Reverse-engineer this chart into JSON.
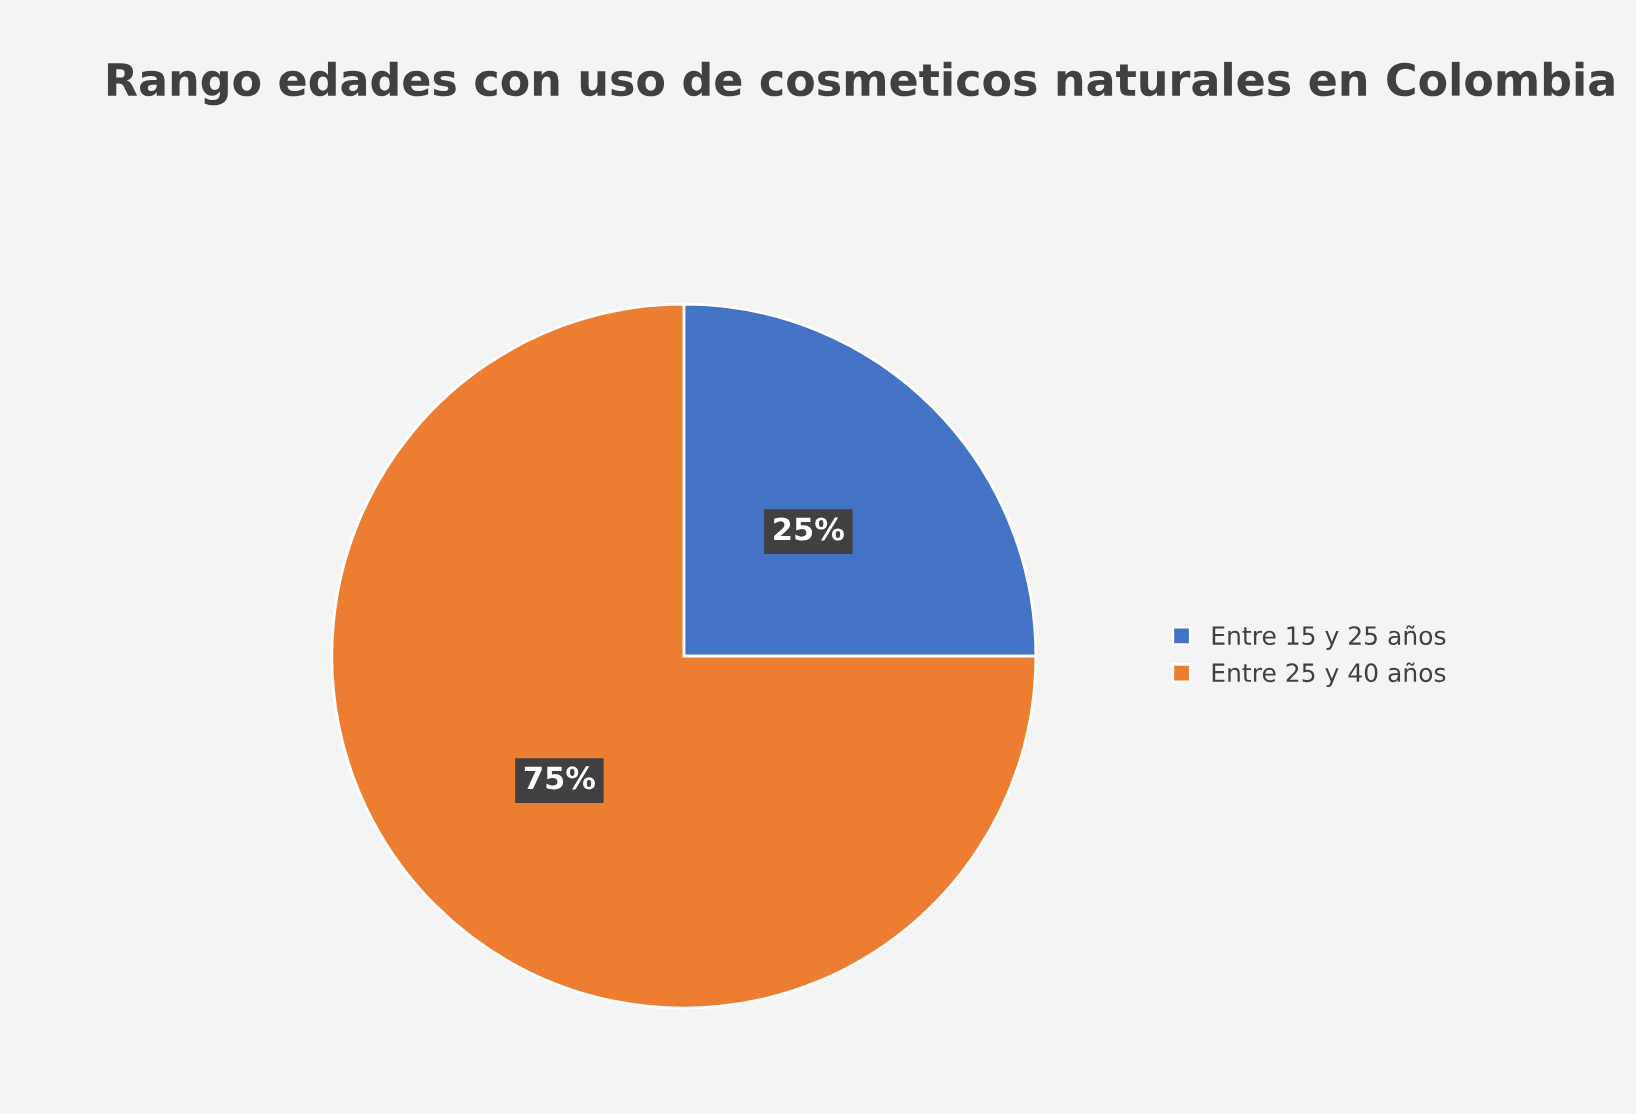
{
  "chart_data": {
    "type": "pie",
    "title": "Rango edades con uso de cosmeticos naturales en Colombia",
    "categories": [
      "Entre 15 y 25 años",
      "Entre 25 y 40 años"
    ],
    "values": [
      25,
      75
    ],
    "colors": [
      "#4472c4",
      "#ed7d31"
    ],
    "value_labels": [
      "25%",
      "75%"
    ],
    "legend": "right"
  }
}
